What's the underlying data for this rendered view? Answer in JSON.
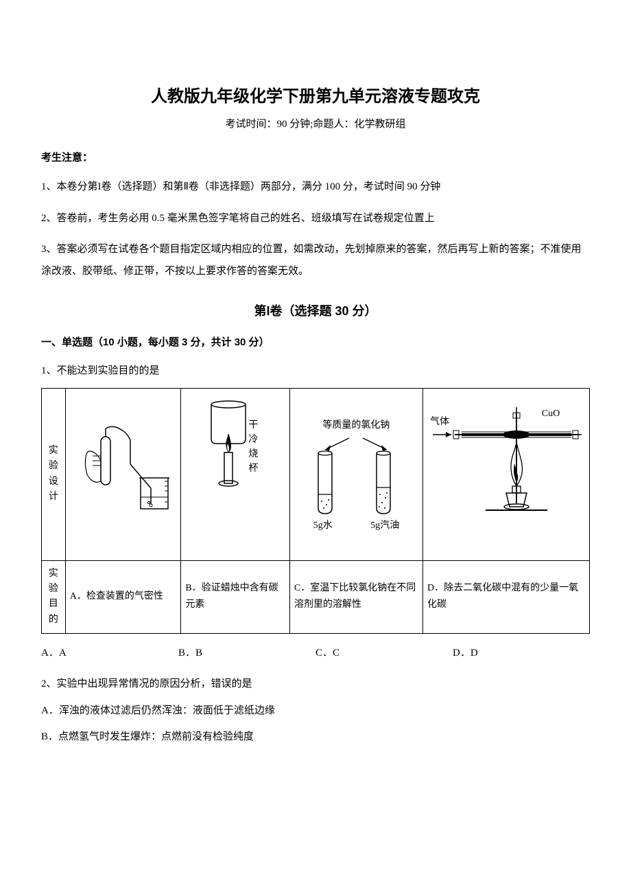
{
  "title": "人教版九年级化学下册第九单元溶液专题攻克",
  "subtitle": "考试时间：90 分钟;命题人：化学教研组",
  "notice_heading": "考生注意：",
  "notice_items": [
    "1、本卷分第I卷（选择题）和第Ⅱ卷（非选择题）两部分，满分 100 分，考试时间 90 分钟",
    "2、答卷前，考生务必用 0.5 毫米黑色签字笔将自己的姓名、班级填写在试卷规定位置上",
    "3、答案必须写在试卷各个题目指定区域内相应的位置，如需改动，先划掉原来的答案，然后再写上新的答案；不准使用涂改液、胶带纸、修正带，不按以上要求作答的答案无效。"
  ],
  "section1_title": "第I卷（选择题  30 分）",
  "part1_heading": "一、单选题（10 小题，每小题 3 分，共计 30 分）",
  "q1": {
    "stem": "1、不能达到实验目的的是",
    "row1_label": "实验设计",
    "row2_label": "实验目的",
    "cellC_top": "等质量的氯化钠",
    "cellC_left_val": "5g水",
    "cellC_right_val": "5g汽油",
    "cellD_gas": "气体",
    "cellD_cuo": "CuO",
    "cellB_label1": "干",
    "cellB_label2": "冷",
    "cellB_label3": "烧",
    "cellB_label4": "杯",
    "purposes": {
      "a": "A．检查装置的气密性",
      "b": "B．验证蜡烛中含有碳元素",
      "c": "C．室温下比较氯化钠在不同溶剂里的溶解性",
      "d": "D．除去二氧化碳中混有的少量一氧化碳"
    },
    "options": {
      "a": "A．A",
      "b": "B．B",
      "c": "C．C",
      "d": "D．D"
    }
  },
  "q2": {
    "stem": "2、实验中出现异常情况的原因分析，错误的是",
    "optA": "A．浑浊的液体过滤后仍然浑浊：液面低于滤纸边缘",
    "optB": "B．点燃氢气时发生爆炸：点燃前没有检验纯度"
  },
  "colors": {
    "text": "#000000",
    "bg": "#ffffff",
    "border": "#000000"
  }
}
